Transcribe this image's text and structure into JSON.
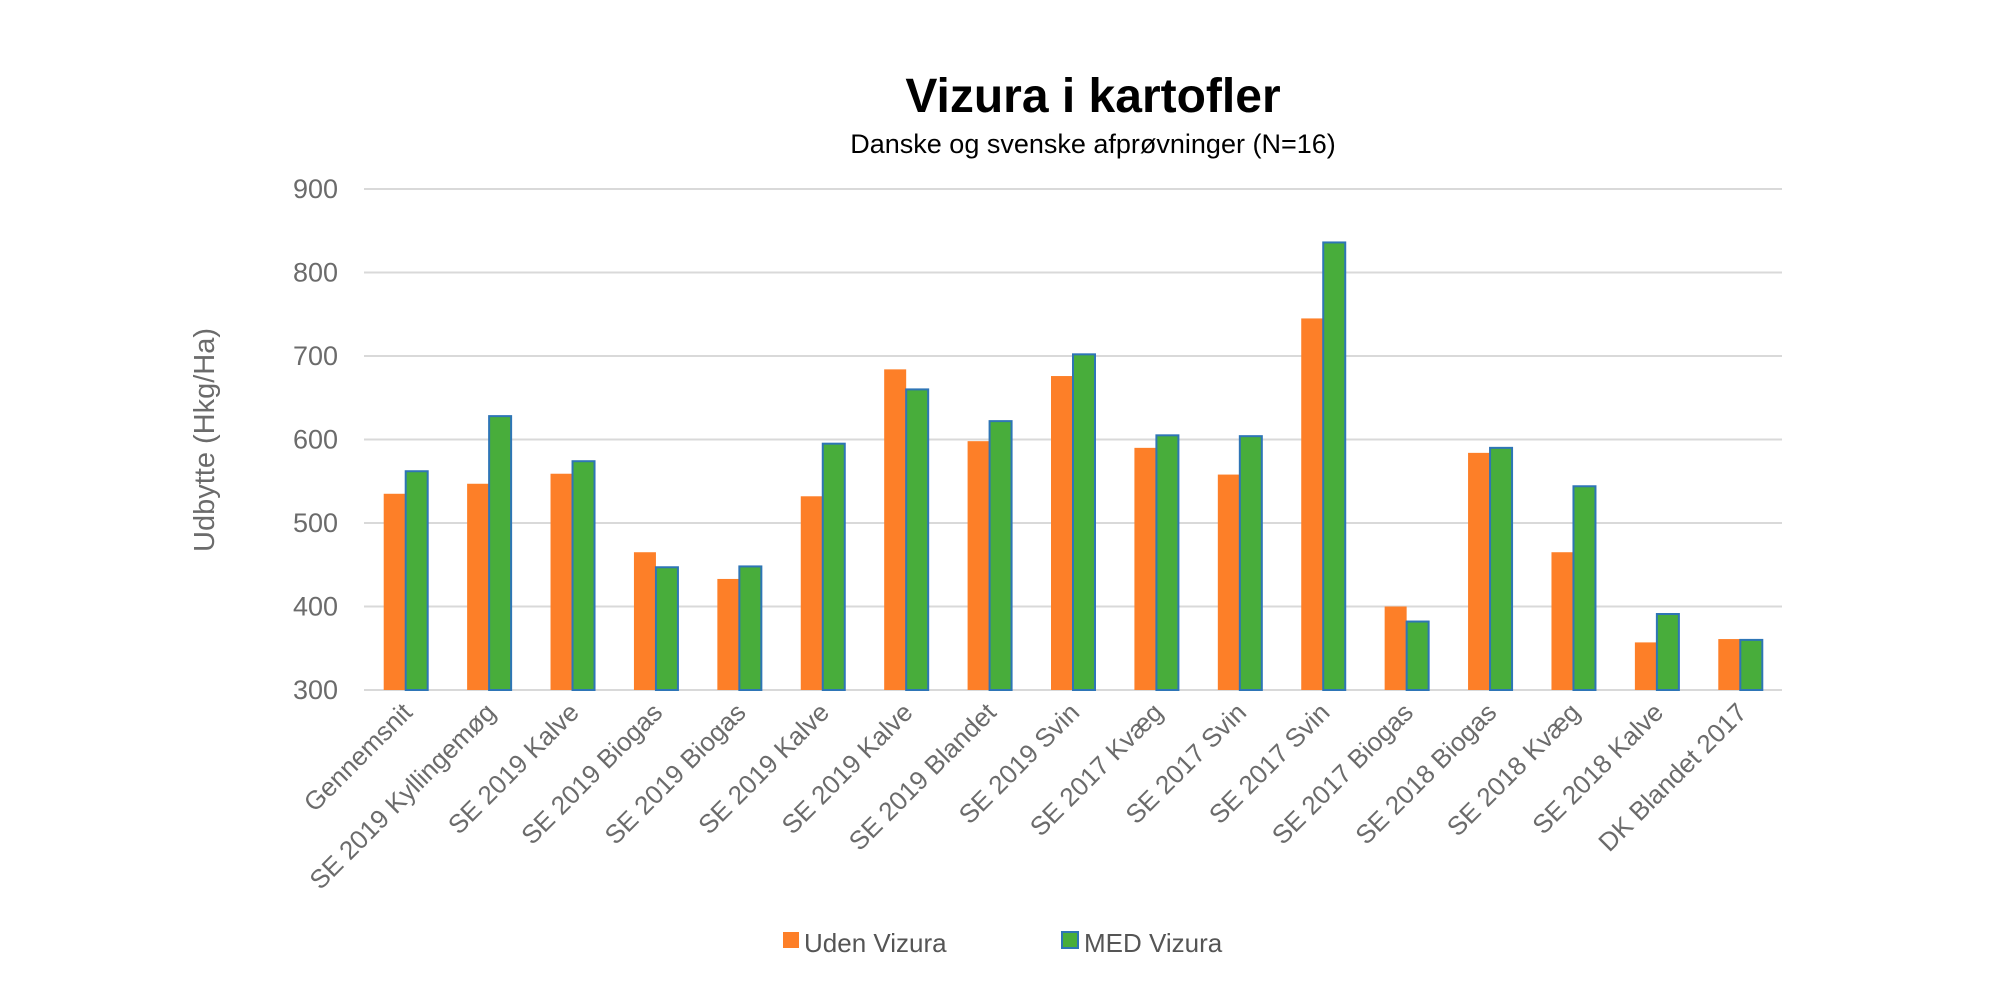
{
  "chart_data": {
    "type": "bar",
    "title": "Vizura i kartofler",
    "subtitle": "Danske og svenske afprøvninger (N=16)",
    "xlabel": "",
    "ylabel": "Udbytte (Hkg/Ha)",
    "ylim": [
      300,
      900
    ],
    "yticks": [
      300,
      400,
      500,
      600,
      700,
      800,
      900
    ],
    "grid": true,
    "legend_position": "bottom",
    "categories": [
      "Gennemsnit",
      "SE 2019 Kyllingemøg",
      "SE 2019 Kalve",
      "SE 2019 Biogas",
      "SE 2019 Biogas",
      "SE 2019 Kalve",
      "SE 2019 Kalve",
      "SE 2019 Blandet",
      "SE 2019 Svin",
      "SE 2017 Kvæg",
      "SE 2017 Svin",
      "SE 2017 Svin",
      "SE 2017 Biogas",
      "SE 2018 Biogas",
      "SE 2018 Kvæg",
      "SE 2018 Kalve",
      "DK Blandet 2017"
    ],
    "series": [
      {
        "name": "Uden Vizura",
        "color": "#fd7f28",
        "values": [
          535,
          547,
          559,
          465,
          433,
          532,
          684,
          598,
          676,
          590,
          558,
          745,
          400,
          584,
          465,
          357,
          361
        ]
      },
      {
        "name": "MED Vizura",
        "color": "#48ad3b",
        "edge": "#2e75b6",
        "values": [
          562,
          628,
          574,
          447,
          448,
          595,
          660,
          622,
          702,
          605,
          604,
          836,
          382,
          590,
          544,
          391,
          360
        ]
      }
    ]
  }
}
